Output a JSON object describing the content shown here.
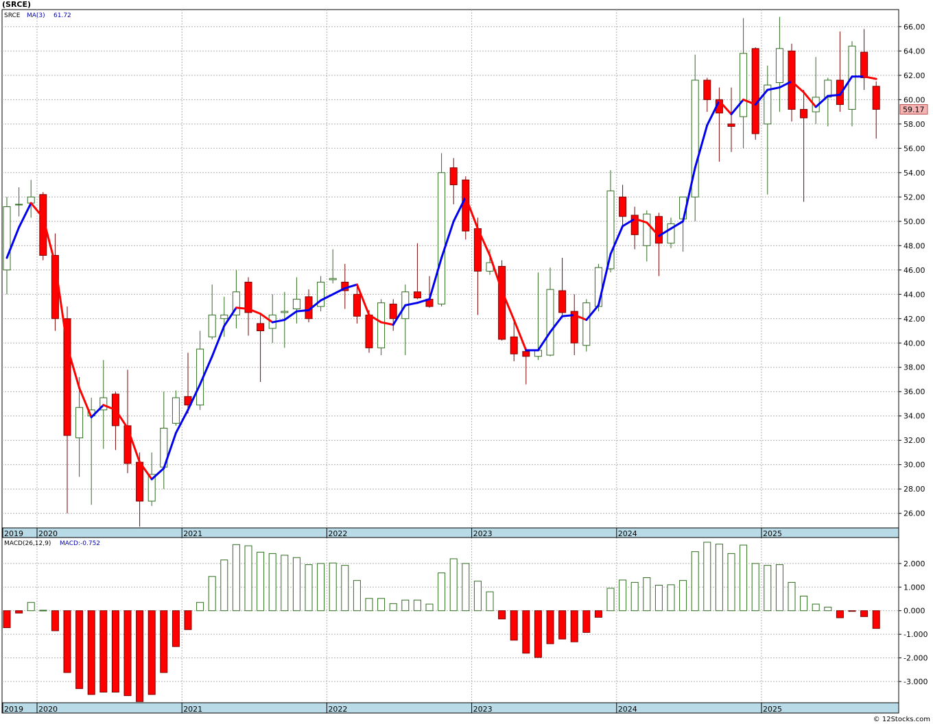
{
  "header": {
    "title": "(SRCE)",
    "credit": "© 12Stocks.com"
  },
  "colors": {
    "up_body": "#ffffff",
    "up_outline": "#2e6b1e",
    "down_body": "#ff0000",
    "down_outline": "#7a0000",
    "ma_up": "#0000ee",
    "ma_down": "#ff0000",
    "grid": "#b0b0b0",
    "axis_band": "#b9dbe8",
    "last_price_bg": "#f4b4b4"
  },
  "chart_data": [
    {
      "type": "candlestick",
      "symbol_label": "SRCE",
      "indicator_label": "MA(3)",
      "indicator_value": "61.72",
      "last_price_label": "59.17",
      "ylim": [
        24.8,
        67.4
      ],
      "y_ticks": [
        "26.00",
        "28.00",
        "30.00",
        "32.00",
        "34.00",
        "36.00",
        "38.00",
        "40.00",
        "42.00",
        "44.00",
        "46.00",
        "48.00",
        "50.00",
        "52.00",
        "54.00",
        "56.00",
        "58.00",
        "60.00",
        "62.00",
        "64.00",
        "66.00"
      ],
      "x_labels": [
        "2019",
        "2020",
        "2021",
        "2022",
        "2023",
        "2024",
        "2025"
      ],
      "x_label_months": [
        -1,
        0,
        12,
        24,
        36,
        48,
        60
      ],
      "grid": true,
      "candles": [
        {
          "m": -3,
          "o": 46.0,
          "h": 52.0,
          "l": 44.0,
          "c": 51.2
        },
        {
          "m": -2,
          "o": 51.4,
          "h": 52.8,
          "l": 50.4,
          "c": 51.4
        },
        {
          "m": -1,
          "o": 51.5,
          "h": 53.4,
          "l": 50.3,
          "c": 52.0
        },
        {
          "m": 0,
          "o": 52.2,
          "h": 52.4,
          "l": 46.8,
          "c": 47.2
        },
        {
          "m": 1,
          "o": 47.2,
          "h": 49.0,
          "l": 41.0,
          "c": 42.0
        },
        {
          "m": 2,
          "o": 42.0,
          "h": 43.0,
          "l": 26.0,
          "c": 32.4
        },
        {
          "m": 3,
          "o": 32.2,
          "h": 37.2,
          "l": 29.0,
          "c": 34.7
        },
        {
          "m": 4,
          "o": 34.0,
          "h": 35.5,
          "l": 26.7,
          "c": 34.5
        },
        {
          "m": 5,
          "o": 34.5,
          "h": 38.6,
          "l": 31.3,
          "c": 35.5
        },
        {
          "m": 6,
          "o": 35.8,
          "h": 36.0,
          "l": 31.2,
          "c": 33.2
        },
        {
          "m": 7,
          "o": 33.2,
          "h": 37.8,
          "l": 29.3,
          "c": 30.1
        },
        {
          "m": 8,
          "o": 30.2,
          "h": 31.0,
          "l": 24.9,
          "c": 27.0
        },
        {
          "m": 9,
          "o": 27.0,
          "h": 31.0,
          "l": 26.6,
          "c": 29.2
        },
        {
          "m": 10,
          "o": 29.8,
          "h": 36.0,
          "l": 28.0,
          "c": 33.0
        },
        {
          "m": 11,
          "o": 33.4,
          "h": 36.1,
          "l": 33.2,
          "c": 35.5
        },
        {
          "m": 12,
          "o": 35.6,
          "h": 39.2,
          "l": 34.2,
          "c": 34.9
        },
        {
          "m": 13,
          "o": 34.9,
          "h": 41.0,
          "l": 34.5,
          "c": 39.5
        },
        {
          "m": 14,
          "o": 40.5,
          "h": 44.8,
          "l": 40.3,
          "c": 42.3
        },
        {
          "m": 15,
          "o": 42.0,
          "h": 43.8,
          "l": 40.5,
          "c": 42.3
        },
        {
          "m": 16,
          "o": 42.3,
          "h": 46.0,
          "l": 41.2,
          "c": 44.2
        },
        {
          "m": 17,
          "o": 45.0,
          "h": 45.4,
          "l": 40.6,
          "c": 42.5
        },
        {
          "m": 18,
          "o": 41.6,
          "h": 42.4,
          "l": 36.8,
          "c": 41.0
        },
        {
          "m": 19,
          "o": 41.2,
          "h": 44.0,
          "l": 40.0,
          "c": 42.3
        },
        {
          "m": 20,
          "o": 42.5,
          "h": 44.2,
          "l": 39.6,
          "c": 42.6
        },
        {
          "m": 21,
          "o": 42.8,
          "h": 45.4,
          "l": 41.6,
          "c": 43.6
        },
        {
          "m": 22,
          "o": 43.8,
          "h": 44.4,
          "l": 41.7,
          "c": 42.0
        },
        {
          "m": 23,
          "o": 43.0,
          "h": 45.5,
          "l": 42.6,
          "c": 45.0
        },
        {
          "m": 24,
          "o": 45.2,
          "h": 47.7,
          "l": 44.9,
          "c": 45.3
        },
        {
          "m": 25,
          "o": 45.0,
          "h": 46.5,
          "l": 42.8,
          "c": 44.3
        },
        {
          "m": 26,
          "o": 44.0,
          "h": 44.8,
          "l": 41.6,
          "c": 42.2
        },
        {
          "m": 27,
          "o": 42.3,
          "h": 42.7,
          "l": 39.2,
          "c": 39.6
        },
        {
          "m": 28,
          "o": 39.6,
          "h": 43.6,
          "l": 39.0,
          "c": 43.3
        },
        {
          "m": 29,
          "o": 43.2,
          "h": 43.6,
          "l": 41.0,
          "c": 42.0
        },
        {
          "m": 30,
          "o": 42.0,
          "h": 44.8,
          "l": 39.0,
          "c": 44.2
        },
        {
          "m": 31,
          "o": 44.2,
          "h": 48.2,
          "l": 43.6,
          "c": 43.7
        },
        {
          "m": 32,
          "o": 43.6,
          "h": 45.5,
          "l": 42.9,
          "c": 43.0
        },
        {
          "m": 33,
          "o": 43.2,
          "h": 55.6,
          "l": 43.0,
          "c": 54.0
        },
        {
          "m": 34,
          "o": 54.4,
          "h": 55.2,
          "l": 51.4,
          "c": 53.0
        },
        {
          "m": 35,
          "o": 53.4,
          "h": 53.7,
          "l": 48.5,
          "c": 49.2
        },
        {
          "m": 36,
          "o": 49.4,
          "h": 50.3,
          "l": 42.3,
          "c": 45.9
        },
        {
          "m": 37,
          "o": 45.9,
          "h": 47.7,
          "l": 45.6,
          "c": 46.6
        },
        {
          "m": 38,
          "o": 46.3,
          "h": 46.8,
          "l": 40.2,
          "c": 40.3
        },
        {
          "m": 39,
          "o": 40.5,
          "h": 41.9,
          "l": 38.5,
          "c": 39.1
        },
        {
          "m": 40,
          "o": 39.3,
          "h": 39.6,
          "l": 36.6,
          "c": 38.9
        },
        {
          "m": 41,
          "o": 38.9,
          "h": 45.8,
          "l": 38.6,
          "c": 39.4
        },
        {
          "m": 42,
          "o": 39.0,
          "h": 46.2,
          "l": 38.9,
          "c": 44.4
        },
        {
          "m": 43,
          "o": 44.3,
          "h": 47.0,
          "l": 42.3,
          "c": 42.5
        },
        {
          "m": 44,
          "o": 42.6,
          "h": 44.0,
          "l": 39.0,
          "c": 40.0
        },
        {
          "m": 45,
          "o": 39.8,
          "h": 43.6,
          "l": 39.3,
          "c": 43.3
        },
        {
          "m": 46,
          "o": 43.0,
          "h": 46.5,
          "l": 42.6,
          "c": 46.2
        },
        {
          "m": 47,
          "o": 46.1,
          "h": 54.2,
          "l": 45.8,
          "c": 52.5
        },
        {
          "m": 48,
          "o": 52.0,
          "h": 53.0,
          "l": 49.6,
          "c": 50.4
        },
        {
          "m": 49,
          "o": 50.5,
          "h": 51.2,
          "l": 47.7,
          "c": 48.9
        },
        {
          "m": 50,
          "o": 48.0,
          "h": 50.9,
          "l": 46.7,
          "c": 50.6
        },
        {
          "m": 51,
          "o": 50.4,
          "h": 50.7,
          "l": 45.5,
          "c": 48.2
        },
        {
          "m": 52,
          "o": 48.2,
          "h": 50.3,
          "l": 47.8,
          "c": 49.8
        },
        {
          "m": 53,
          "o": 50.2,
          "h": 52.0,
          "l": 47.5,
          "c": 52.0
        },
        {
          "m": 54,
          "o": 52.0,
          "h": 63.7,
          "l": 50.0,
          "c": 61.6
        },
        {
          "m": 55,
          "o": 61.6,
          "h": 61.8,
          "l": 59.0,
          "c": 60.0
        },
        {
          "m": 56,
          "o": 60.0,
          "h": 61.0,
          "l": 54.9,
          "c": 58.9
        },
        {
          "m": 57,
          "o": 58.0,
          "h": 61.0,
          "l": 55.7,
          "c": 57.8
        },
        {
          "m": 58,
          "o": 58.6,
          "h": 66.7,
          "l": 56.0,
          "c": 63.8
        },
        {
          "m": 59,
          "o": 64.2,
          "h": 64.3,
          "l": 56.7,
          "c": 57.2
        },
        {
          "m": 60,
          "o": 58.0,
          "h": 62.8,
          "l": 52.2,
          "c": 61.2
        },
        {
          "m": 61,
          "o": 61.4,
          "h": 66.8,
          "l": 59.0,
          "c": 64.2
        },
        {
          "m": 62,
          "o": 64.0,
          "h": 64.6,
          "l": 58.2,
          "c": 59.2
        },
        {
          "m": 63,
          "o": 59.2,
          "h": 60.8,
          "l": 51.6,
          "c": 58.5
        },
        {
          "m": 64,
          "o": 59.0,
          "h": 63.5,
          "l": 58.0,
          "c": 60.2
        },
        {
          "m": 65,
          "o": 60.2,
          "h": 61.8,
          "l": 57.8,
          "c": 61.6
        },
        {
          "m": 66,
          "o": 61.6,
          "h": 65.6,
          "l": 59.0,
          "c": 59.6
        },
        {
          "m": 67,
          "o": 59.2,
          "h": 64.8,
          "l": 57.8,
          "c": 64.4
        },
        {
          "m": 68,
          "o": 63.9,
          "h": 65.8,
          "l": 60.8,
          "c": 61.8
        },
        {
          "m": 69,
          "o": 61.1,
          "h": 61.5,
          "l": 56.8,
          "c": 59.2
        }
      ],
      "ma": [
        {
          "m": -3,
          "v": 47.0
        },
        {
          "m": -2,
          "v": 49.5
        },
        {
          "m": -1,
          "v": 51.5
        },
        {
          "m": 0,
          "v": 50.3
        },
        {
          "m": 1,
          "v": 46.5
        },
        {
          "m": 2,
          "v": 39.7
        },
        {
          "m": 3,
          "v": 36.3
        },
        {
          "m": 4,
          "v": 33.9
        },
        {
          "m": 5,
          "v": 34.9
        },
        {
          "m": 6,
          "v": 34.5
        },
        {
          "m": 7,
          "v": 33.0
        },
        {
          "m": 8,
          "v": 30.2
        },
        {
          "m": 9,
          "v": 28.8
        },
        {
          "m": 10,
          "v": 29.7
        },
        {
          "m": 11,
          "v": 32.6
        },
        {
          "m": 12,
          "v": 34.5
        },
        {
          "m": 13,
          "v": 36.6
        },
        {
          "m": 14,
          "v": 38.9
        },
        {
          "m": 15,
          "v": 41.4
        },
        {
          "m": 16,
          "v": 42.9
        },
        {
          "m": 17,
          "v": 42.8
        },
        {
          "m": 18,
          "v": 42.4
        },
        {
          "m": 19,
          "v": 41.7
        },
        {
          "m": 20,
          "v": 41.9
        },
        {
          "m": 21,
          "v": 42.6
        },
        {
          "m": 22,
          "v": 42.7
        },
        {
          "m": 23,
          "v": 43.5
        },
        {
          "m": 24,
          "v": 44.0
        },
        {
          "m": 25,
          "v": 44.5
        },
        {
          "m": 26,
          "v": 44.8
        },
        {
          "m": 27,
          "v": 42.3
        },
        {
          "m": 28,
          "v": 41.7
        },
        {
          "m": 29,
          "v": 41.5
        },
        {
          "m": 30,
          "v": 43.1
        },
        {
          "m": 31,
          "v": 43.3
        },
        {
          "m": 32,
          "v": 43.6
        },
        {
          "m": 33,
          "v": 47.0
        },
        {
          "m": 34,
          "v": 50.0
        },
        {
          "m": 35,
          "v": 52.0
        },
        {
          "m": 36,
          "v": 49.4
        },
        {
          "m": 37,
          "v": 47.2
        },
        {
          "m": 38,
          "v": 44.3
        },
        {
          "m": 39,
          "v": 41.9
        },
        {
          "m": 40,
          "v": 39.4
        },
        {
          "m": 41,
          "v": 39.4
        },
        {
          "m": 42,
          "v": 40.9
        },
        {
          "m": 43,
          "v": 42.2
        },
        {
          "m": 44,
          "v": 42.3
        },
        {
          "m": 45,
          "v": 41.9
        },
        {
          "m": 46,
          "v": 43.1
        },
        {
          "m": 47,
          "v": 47.3
        },
        {
          "m": 48,
          "v": 49.6
        },
        {
          "m": 49,
          "v": 50.2
        },
        {
          "m": 50,
          "v": 49.9
        },
        {
          "m": 51,
          "v": 48.8
        },
        {
          "m": 52,
          "v": 49.4
        },
        {
          "m": 53,
          "v": 50.0
        },
        {
          "m": 54,
          "v": 54.4
        },
        {
          "m": 55,
          "v": 57.9
        },
        {
          "m": 56,
          "v": 59.9
        },
        {
          "m": 57,
          "v": 58.8
        },
        {
          "m": 58,
          "v": 60.0
        },
        {
          "m": 59,
          "v": 59.6
        },
        {
          "m": 60,
          "v": 60.8
        },
        {
          "m": 61,
          "v": 61.0
        },
        {
          "m": 62,
          "v": 61.5
        },
        {
          "m": 63,
          "v": 60.6
        },
        {
          "m": 64,
          "v": 59.4
        },
        {
          "m": 65,
          "v": 60.3
        },
        {
          "m": 66,
          "v": 60.4
        },
        {
          "m": 67,
          "v": 61.9
        },
        {
          "m": 68,
          "v": 61.9
        },
        {
          "m": 69,
          "v": 61.7
        }
      ]
    },
    {
      "type": "bar",
      "indicator_label": "MACD(26,12,9)",
      "value_label": "MACD:-0.752",
      "ylim": [
        -3.9,
        3.1
      ],
      "y_ticks": [
        "2.000",
        "1.000",
        "0.000",
        "-1.000",
        "-2.000",
        "-3.000"
      ],
      "y_tick_values": [
        2,
        1,
        0,
        -1,
        -2,
        -3
      ],
      "x_labels": [
        "2019",
        "2020",
        "2021",
        "2022",
        "2023",
        "2024",
        "2025"
      ],
      "x_label_months": [
        -1,
        0,
        12,
        24,
        36,
        48,
        60
      ],
      "grid": true,
      "bars": [
        {
          "m": -3,
          "v": -0.72
        },
        {
          "m": -2,
          "v": -0.1
        },
        {
          "m": -1,
          "v": 0.35
        },
        {
          "m": 0,
          "v": 0.02
        },
        {
          "m": 1,
          "v": -0.85
        },
        {
          "m": 2,
          "v": -2.62
        },
        {
          "m": 3,
          "v": -3.3
        },
        {
          "m": 4,
          "v": -3.55
        },
        {
          "m": 5,
          "v": -3.45
        },
        {
          "m": 6,
          "v": -3.45
        },
        {
          "m": 7,
          "v": -3.6
        },
        {
          "m": 8,
          "v": -3.85
        },
        {
          "m": 9,
          "v": -3.55
        },
        {
          "m": 10,
          "v": -2.62
        },
        {
          "m": 11,
          "v": -1.52
        },
        {
          "m": 12,
          "v": -0.8
        },
        {
          "m": 13,
          "v": 0.35
        },
        {
          "m": 14,
          "v": 1.45
        },
        {
          "m": 15,
          "v": 2.15
        },
        {
          "m": 16,
          "v": 2.8
        },
        {
          "m": 17,
          "v": 2.75
        },
        {
          "m": 18,
          "v": 2.48
        },
        {
          "m": 19,
          "v": 2.42
        },
        {
          "m": 20,
          "v": 2.35
        },
        {
          "m": 21,
          "v": 2.25
        },
        {
          "m": 22,
          "v": 1.95
        },
        {
          "m": 23,
          "v": 2.0
        },
        {
          "m": 24,
          "v": 2.02
        },
        {
          "m": 25,
          "v": 1.92
        },
        {
          "m": 26,
          "v": 1.28
        },
        {
          "m": 27,
          "v": 0.52
        },
        {
          "m": 28,
          "v": 0.52
        },
        {
          "m": 29,
          "v": 0.3
        },
        {
          "m": 30,
          "v": 0.45
        },
        {
          "m": 31,
          "v": 0.45
        },
        {
          "m": 32,
          "v": 0.28
        },
        {
          "m": 33,
          "v": 1.6
        },
        {
          "m": 34,
          "v": 2.2
        },
        {
          "m": 35,
          "v": 2.0
        },
        {
          "m": 36,
          "v": 1.25
        },
        {
          "m": 37,
          "v": 0.8
        },
        {
          "m": 38,
          "v": -0.35
        },
        {
          "m": 39,
          "v": -1.25
        },
        {
          "m": 40,
          "v": -1.8
        },
        {
          "m": 41,
          "v": -1.98
        },
        {
          "m": 42,
          "v": -1.4
        },
        {
          "m": 43,
          "v": -1.2
        },
        {
          "m": 44,
          "v": -1.32
        },
        {
          "m": 45,
          "v": -0.92
        },
        {
          "m": 46,
          "v": -0.28
        },
        {
          "m": 47,
          "v": 0.95
        },
        {
          "m": 48,
          "v": 1.3
        },
        {
          "m": 49,
          "v": 1.2
        },
        {
          "m": 50,
          "v": 1.4
        },
        {
          "m": 51,
          "v": 1.08
        },
        {
          "m": 52,
          "v": 1.1
        },
        {
          "m": 53,
          "v": 1.28
        },
        {
          "m": 54,
          "v": 2.5
        },
        {
          "m": 55,
          "v": 2.9
        },
        {
          "m": 56,
          "v": 2.82
        },
        {
          "m": 57,
          "v": 2.42
        },
        {
          "m": 58,
          "v": 2.78
        },
        {
          "m": 59,
          "v": 2.0
        },
        {
          "m": 60,
          "v": 1.92
        },
        {
          "m": 61,
          "v": 1.95
        },
        {
          "m": 62,
          "v": 1.2
        },
        {
          "m": 63,
          "v": 0.62
        },
        {
          "m": 64,
          "v": 0.28
        },
        {
          "m": 65,
          "v": 0.15
        },
        {
          "m": 66,
          "v": -0.3
        },
        {
          "m": 67,
          "v": -0.02
        },
        {
          "m": 68,
          "v": -0.25
        },
        {
          "m": 69,
          "v": -0.752
        }
      ]
    }
  ]
}
